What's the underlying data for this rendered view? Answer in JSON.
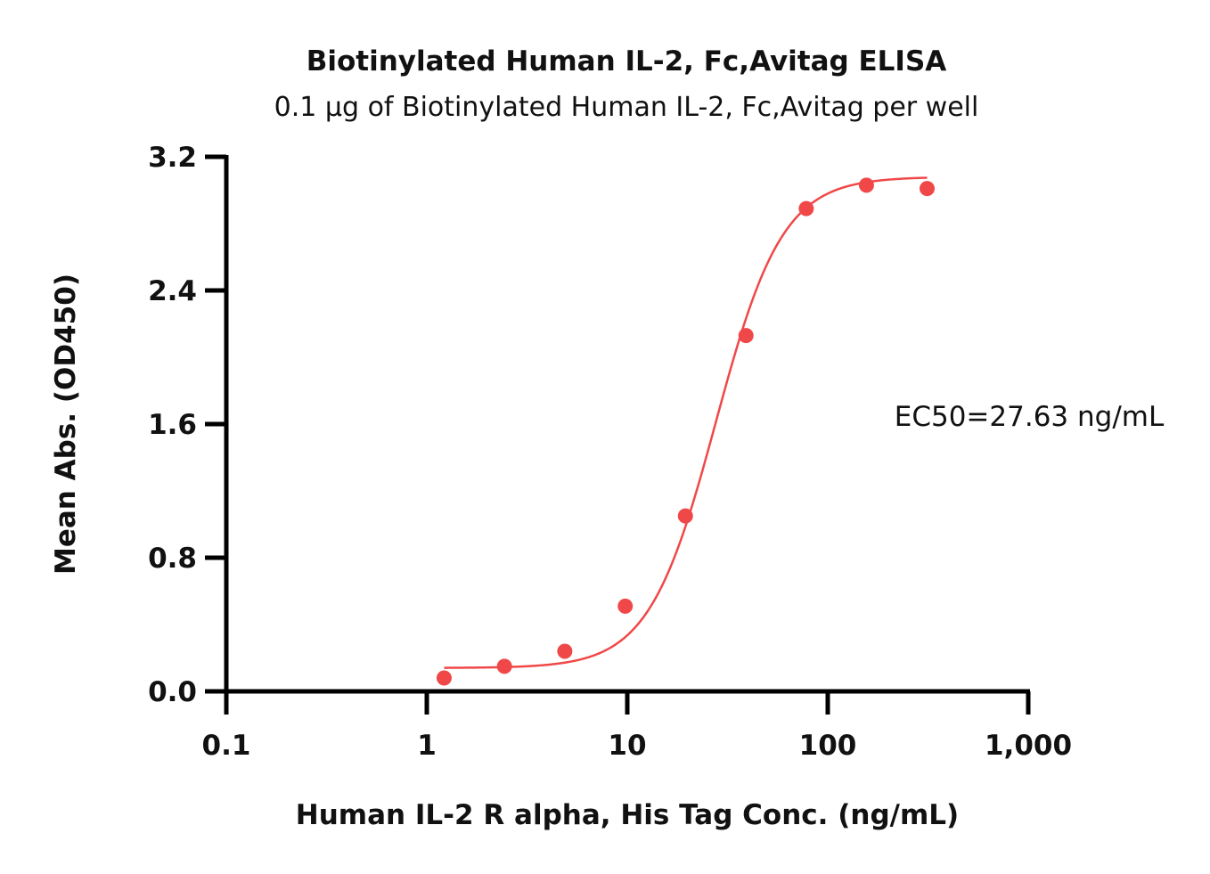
{
  "chart_data": {
    "type": "scatter",
    "title": "Biotinylated Human IL-2, Fc,Avitag ELISA",
    "subtitle": "0.1 µg of Biotinylated Human IL-2, Fc,Avitag per well",
    "xlabel": "Human IL-2 R alpha, His Tag Conc. (ng/mL)",
    "ylabel": "Mean Abs. (OD450)",
    "x_scale": "log10",
    "xlim": [
      0.1,
      1000
    ],
    "ylim": [
      0,
      3.2
    ],
    "x_ticks": [
      {
        "value": 0.1,
        "label": "0.1"
      },
      {
        "value": 1,
        "label": "1"
      },
      {
        "value": 10,
        "label": "10"
      },
      {
        "value": 100,
        "label": "100"
      },
      {
        "value": 1000,
        "label": "1,000"
      }
    ],
    "y_ticks": [
      {
        "value": 0.0,
        "label": "0.0"
      },
      {
        "value": 0.8,
        "label": "0.8"
      },
      {
        "value": 1.6,
        "label": "1.6"
      },
      {
        "value": 2.4,
        "label": "2.4"
      },
      {
        "value": 3.2,
        "label": "3.2"
      }
    ],
    "points": {
      "x": [
        1.22,
        2.44,
        4.88,
        9.77,
        19.5,
        39.1,
        78.1,
        156,
        313
      ],
      "y": [
        0.08,
        0.15,
        0.24,
        0.51,
        1.05,
        2.13,
        2.89,
        3.03,
        3.01
      ]
    },
    "fit": {
      "model": "4PL",
      "bottom": 0.14,
      "top": 3.08,
      "ec50": 27.63,
      "hill": 2.6,
      "x_range": [
        1.22,
        313
      ]
    },
    "annotation": "EC50=27.63 ng/mL",
    "color": "#f04848",
    "grid": false,
    "legend": "none"
  }
}
